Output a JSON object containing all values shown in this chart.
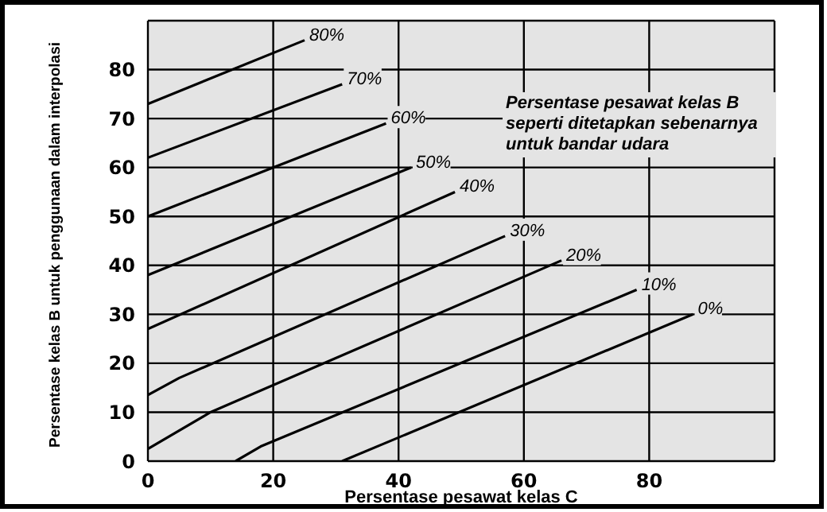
{
  "chart_data": {
    "type": "line",
    "xlabel": "Persentase pesawat kelas C",
    "ylabel": "Persentase kelas B untuk penggunaan dalam interpolasi",
    "xlim": [
      0,
      100
    ],
    "ylim": [
      0,
      90
    ],
    "xticks": [
      0,
      20,
      40,
      60,
      80
    ],
    "yticks": [
      0,
      10,
      20,
      30,
      40,
      50,
      60,
      70,
      80
    ],
    "grid": true,
    "legend": false,
    "marker": "none",
    "line_style": "solid",
    "annotations": [
      "Persentase pesawat kelas B seperti ditetapkan sebenarnya untuk bandar udara"
    ],
    "series": [
      {
        "name": "80%",
        "color": "#000000",
        "x": [
          0,
          25
        ],
        "values": [
          73,
          86
        ]
      },
      {
        "name": "70%",
        "color": "#000000",
        "x": [
          0,
          31
        ],
        "values": [
          62,
          77
        ]
      },
      {
        "name": "60%",
        "color": "#000000",
        "x": [
          0,
          38
        ],
        "values": [
          50,
          69
        ]
      },
      {
        "name": "50%",
        "color": "#000000",
        "x": [
          0,
          42
        ],
        "values": [
          38,
          60
        ]
      },
      {
        "name": "40%",
        "color": "#000000",
        "x": [
          0,
          49
        ],
        "values": [
          27,
          55
        ]
      },
      {
        "name": "30%",
        "color": "#000000",
        "x": [
          0,
          5,
          57
        ],
        "values": [
          13.5,
          17,
          46
        ]
      },
      {
        "name": "20%",
        "color": "#000000",
        "x": [
          0,
          10,
          66
        ],
        "values": [
          2.5,
          10,
          41
        ]
      },
      {
        "name": "10%",
        "color": "#000000",
        "x": [
          14,
          18,
          78
        ],
        "values": [
          0,
          3,
          35
        ]
      },
      {
        "name": "0%",
        "color": "#000000",
        "x": [
          31,
          87
        ],
        "values": [
          0,
          30
        ]
      }
    ]
  }
}
